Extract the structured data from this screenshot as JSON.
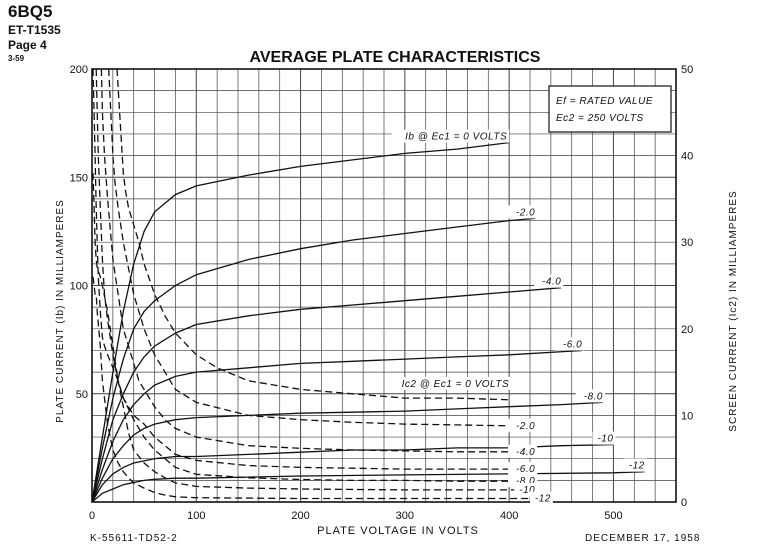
{
  "header": {
    "tube": "6BQ5",
    "doc_no": "ET-T1535",
    "page": "Page 4",
    "issue": "3-59"
  },
  "footer": {
    "left": "K-55611-TD52-2",
    "right": "DECEMBER 17, 1958"
  },
  "chart_data": {
    "type": "line",
    "title": "AVERAGE PLATE CHARACTERISTICS",
    "xlabel": "PLATE VOLTAGE IN VOLTS",
    "ylabel": "PLATE CURRENT (Ib) IN MILLIAMPERES",
    "y2label": "SCREEN CURRENT (Ic2) IN MILLIAMPERES",
    "xlim": [
      0,
      560
    ],
    "ylim": [
      0,
      200
    ],
    "y2lim": [
      0,
      50
    ],
    "xticks": [
      0,
      100,
      200,
      300,
      400,
      500
    ],
    "yticks": [
      50,
      100,
      150,
      200
    ],
    "y2ticks": [
      0,
      10,
      20,
      30,
      40,
      50
    ],
    "grid": true,
    "conditions": [
      "Ef = RATED VALUE",
      "Ec2 = 250 VOLTS"
    ],
    "plate_curves": [
      {
        "label": "Ib @ Ec1 = 0 VOLTS",
        "style": "solid",
        "points": [
          [
            0,
            0
          ],
          [
            10,
            30
          ],
          [
            20,
            60
          ],
          [
            30,
            88
          ],
          [
            40,
            110
          ],
          [
            50,
            125
          ],
          [
            60,
            134
          ],
          [
            80,
            142
          ],
          [
            100,
            146
          ],
          [
            150,
            151
          ],
          [
            200,
            155
          ],
          [
            250,
            158
          ],
          [
            300,
            161
          ],
          [
            350,
            163
          ],
          [
            400,
            166
          ]
        ]
      },
      {
        "label": "-2.0",
        "style": "solid",
        "points": [
          [
            0,
            0
          ],
          [
            10,
            25
          ],
          [
            20,
            48
          ],
          [
            30,
            66
          ],
          [
            40,
            80
          ],
          [
            50,
            88
          ],
          [
            60,
            93
          ],
          [
            80,
            100
          ],
          [
            100,
            105
          ],
          [
            150,
            112
          ],
          [
            200,
            117
          ],
          [
            250,
            121
          ],
          [
            300,
            124
          ],
          [
            350,
            127
          ],
          [
            400,
            130
          ],
          [
            425,
            131
          ]
        ]
      },
      {
        "label": "-4.0",
        "style": "solid",
        "points": [
          [
            0,
            0
          ],
          [
            10,
            20
          ],
          [
            20,
            38
          ],
          [
            30,
            50
          ],
          [
            40,
            60
          ],
          [
            50,
            67
          ],
          [
            60,
            72
          ],
          [
            80,
            78
          ],
          [
            100,
            82
          ],
          [
            150,
            86
          ],
          [
            200,
            89
          ],
          [
            250,
            91
          ],
          [
            300,
            93
          ],
          [
            350,
            95
          ],
          [
            400,
            97
          ],
          [
            450,
            99
          ]
        ]
      },
      {
        "label": "-6.0",
        "style": "solid",
        "points": [
          [
            0,
            0
          ],
          [
            10,
            15
          ],
          [
            20,
            28
          ],
          [
            30,
            38
          ],
          [
            40,
            45
          ],
          [
            50,
            50
          ],
          [
            60,
            54
          ],
          [
            80,
            58
          ],
          [
            100,
            60
          ],
          [
            150,
            62
          ],
          [
            200,
            64
          ],
          [
            250,
            65
          ],
          [
            300,
            66
          ],
          [
            350,
            67
          ],
          [
            400,
            68
          ],
          [
            470,
            70
          ]
        ]
      },
      {
        "label": "-8.0",
        "style": "solid",
        "points": [
          [
            0,
            0
          ],
          [
            10,
            11
          ],
          [
            20,
            20
          ],
          [
            30,
            26
          ],
          [
            40,
            31
          ],
          [
            50,
            34
          ],
          [
            60,
            36
          ],
          [
            80,
            38
          ],
          [
            100,
            39
          ],
          [
            150,
            40
          ],
          [
            200,
            41
          ],
          [
            250,
            41.5
          ],
          [
            300,
            42
          ],
          [
            350,
            43
          ],
          [
            400,
            44
          ],
          [
            450,
            45
          ],
          [
            490,
            46
          ]
        ]
      },
      {
        "label": "-10",
        "style": "solid",
        "points": [
          [
            0,
            0
          ],
          [
            10,
            8
          ],
          [
            20,
            13
          ],
          [
            30,
            16
          ],
          [
            40,
            18
          ],
          [
            50,
            19
          ],
          [
            60,
            20
          ],
          [
            80,
            21
          ],
          [
            100,
            21
          ],
          [
            150,
            22
          ],
          [
            200,
            23
          ],
          [
            250,
            24
          ],
          [
            300,
            24
          ],
          [
            350,
            25
          ],
          [
            400,
            25
          ],
          [
            450,
            26
          ],
          [
            500,
            26.5
          ]
        ]
      },
      {
        "label": "-12",
        "style": "solid",
        "points": [
          [
            0,
            0
          ],
          [
            10,
            4
          ],
          [
            20,
            6
          ],
          [
            30,
            8
          ],
          [
            40,
            9
          ],
          [
            50,
            10
          ],
          [
            60,
            10.5
          ],
          [
            80,
            11
          ],
          [
            100,
            11
          ],
          [
            150,
            11.5
          ],
          [
            200,
            12
          ],
          [
            300,
            12.5
          ],
          [
            400,
            13
          ],
          [
            500,
            13.5
          ],
          [
            530,
            14
          ]
        ]
      }
    ],
    "screen_curves": [
      {
        "label": "Ic2 @ Ec1 = 0 VOLTS",
        "style": "dashed",
        "points": [
          [
            24,
            50
          ],
          [
            26,
            46
          ],
          [
            28,
            42
          ],
          [
            30,
            38
          ],
          [
            32,
            36
          ],
          [
            35,
            34
          ],
          [
            40,
            32
          ],
          [
            45,
            30
          ],
          [
            50,
            27.5
          ],
          [
            60,
            24
          ],
          [
            70,
            21.5
          ],
          [
            80,
            19.5
          ],
          [
            100,
            17
          ],
          [
            120,
            15.5
          ],
          [
            150,
            14
          ],
          [
            200,
            13
          ],
          [
            250,
            12.5
          ],
          [
            300,
            12
          ],
          [
            350,
            12
          ],
          [
            400,
            11.8
          ]
        ]
      },
      {
        "label": "-2.0",
        "style": "dashed",
        "points": [
          [
            16,
            50
          ],
          [
            18,
            45
          ],
          [
            20,
            40
          ],
          [
            22,
            37
          ],
          [
            25,
            34
          ],
          [
            30,
            30
          ],
          [
            35,
            27
          ],
          [
            40,
            24
          ],
          [
            45,
            22
          ],
          [
            50,
            20
          ],
          [
            60,
            17
          ],
          [
            70,
            15
          ],
          [
            80,
            13
          ],
          [
            100,
            11.5
          ],
          [
            150,
            10
          ],
          [
            200,
            9.5
          ],
          [
            250,
            9.2
          ],
          [
            300,
            9
          ],
          [
            350,
            8.9
          ],
          [
            400,
            8.8
          ],
          [
            425,
            8.8
          ]
        ]
      },
      {
        "label": "-4.0",
        "style": "dashed",
        "points": [
          [
            9,
            50
          ],
          [
            10,
            45
          ],
          [
            12,
            40
          ],
          [
            15,
            35
          ],
          [
            20,
            28
          ],
          [
            25,
            24
          ],
          [
            30,
            20
          ],
          [
            35,
            18
          ],
          [
            40,
            16
          ],
          [
            45,
            14
          ],
          [
            50,
            13
          ],
          [
            60,
            11
          ],
          [
            70,
            9.5
          ],
          [
            80,
            8.5
          ],
          [
            100,
            7.5
          ],
          [
            150,
            6.5
          ],
          [
            200,
            6.2
          ],
          [
            250,
            6
          ],
          [
            300,
            5.9
          ],
          [
            350,
            5.8
          ],
          [
            400,
            5.8
          ],
          [
            425,
            5.8
          ]
        ]
      },
      {
        "label": "-6.0",
        "style": "dashed",
        "points": [
          [
            4,
            50
          ],
          [
            5,
            45
          ],
          [
            6,
            40
          ],
          [
            8,
            34
          ],
          [
            10,
            28
          ],
          [
            12,
            24
          ],
          [
            15,
            21
          ],
          [
            20,
            17
          ],
          [
            25,
            14
          ],
          [
            30,
            12
          ],
          [
            35,
            11
          ],
          [
            40,
            10
          ],
          [
            50,
            9
          ],
          [
            60,
            7.5
          ],
          [
            70,
            6.5
          ],
          [
            80,
            5.5
          ],
          [
            100,
            4.8
          ],
          [
            150,
            4.2
          ],
          [
            200,
            4
          ],
          [
            250,
            3.9
          ],
          [
            300,
            3.8
          ],
          [
            350,
            3.8
          ],
          [
            400,
            3.8
          ],
          [
            425,
            3.8
          ]
        ]
      },
      {
        "label": "-8.0",
        "style": "dashed",
        "points": [
          [
            1,
            50
          ],
          [
            2,
            45
          ],
          [
            3,
            40
          ],
          [
            4,
            34
          ],
          [
            5,
            30
          ],
          [
            6,
            26
          ],
          [
            8,
            22
          ],
          [
            10,
            19
          ],
          [
            12,
            18
          ],
          [
            15,
            17
          ],
          [
            20,
            15.5
          ],
          [
            25,
            14
          ],
          [
            30,
            12
          ],
          [
            40,
            9.5
          ],
          [
            50,
            7.5
          ],
          [
            60,
            6
          ],
          [
            70,
            5
          ],
          [
            80,
            4
          ],
          [
            100,
            3.2
          ],
          [
            150,
            2.8
          ],
          [
            200,
            2.6
          ],
          [
            250,
            2.5
          ],
          [
            300,
            2.5
          ],
          [
            350,
            2.4
          ],
          [
            400,
            2.4
          ],
          [
            425,
            2.4
          ]
        ]
      },
      {
        "label": "-10",
        "style": "dashed",
        "points": [
          [
            1,
            38
          ],
          [
            2,
            34
          ],
          [
            3,
            30
          ],
          [
            4,
            28
          ],
          [
            5,
            27
          ],
          [
            8,
            26
          ],
          [
            10,
            25
          ],
          [
            15,
            22
          ],
          [
            20,
            18
          ],
          [
            25,
            14
          ],
          [
            30,
            11
          ],
          [
            35,
            8
          ],
          [
            40,
            6
          ],
          [
            50,
            4.5
          ],
          [
            60,
            3.5
          ],
          [
            70,
            2.8
          ],
          [
            80,
            2.2
          ],
          [
            100,
            1.8
          ],
          [
            150,
            1.6
          ],
          [
            200,
            1.5
          ],
          [
            300,
            1.4
          ],
          [
            400,
            1.4
          ],
          [
            425,
            1.4
          ]
        ]
      },
      {
        "label": "-12",
        "style": "dashed",
        "points": [
          [
            1,
            26
          ],
          [
            2,
            25
          ],
          [
            3,
            24
          ],
          [
            4,
            24
          ],
          [
            5,
            22
          ],
          [
            8,
            18
          ],
          [
            10,
            14
          ],
          [
            15,
            9
          ],
          [
            20,
            6
          ],
          [
            25,
            4.5
          ],
          [
            30,
            3.5
          ],
          [
            35,
            2.8
          ],
          [
            40,
            2.2
          ],
          [
            50,
            1.6
          ],
          [
            60,
            1.1
          ],
          [
            70,
            0.8
          ],
          [
            80,
            0.6
          ],
          [
            100,
            0.5
          ],
          [
            200,
            0.4
          ],
          [
            300,
            0.4
          ],
          [
            400,
            0.4
          ],
          [
            440,
            0.4
          ]
        ]
      }
    ]
  }
}
